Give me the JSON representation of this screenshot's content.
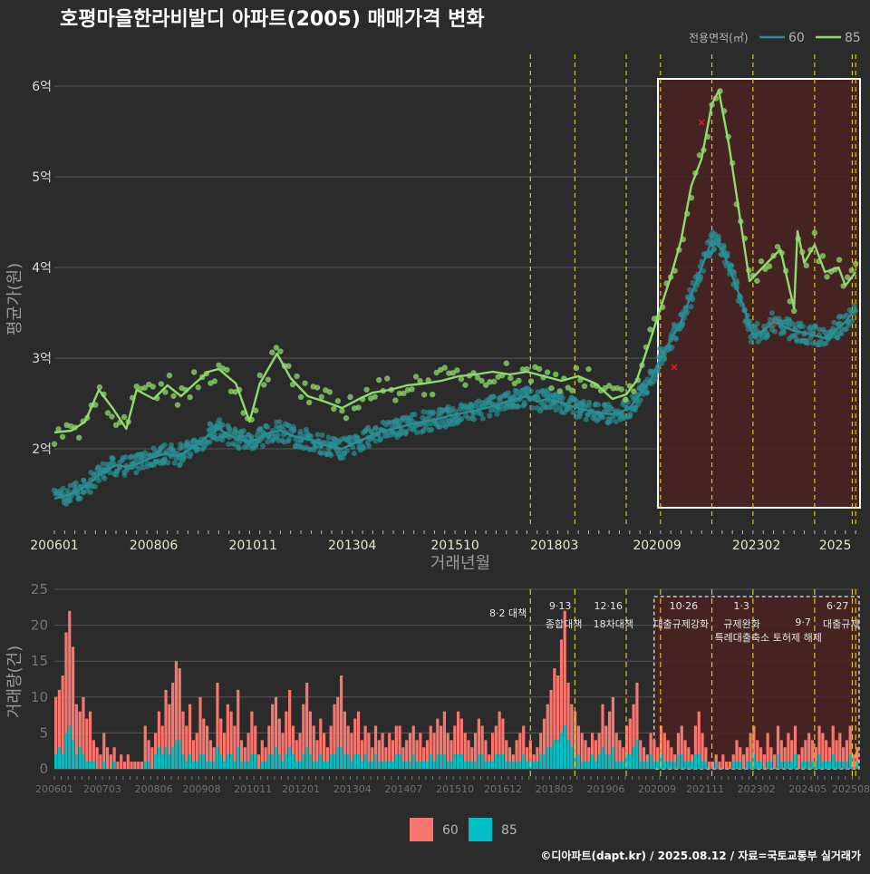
{
  "title": "호평마을한라비발디 아파트(2005) 매매가격 변화",
  "caption": "©디아파트(dapt.kr) / 2025.08.12 / 자료=국토교통부 실거래가",
  "colors": {
    "background": "#2b2b2b",
    "series_60_line": "#2a8f94",
    "series_85_line": "#8fdc6e",
    "bar_60": "#f8766d",
    "bar_85": "#00bfc4",
    "policy_line": "#d6c62a",
    "highlight_fill": "#4a2222",
    "outlier_mark": "#cc2222"
  },
  "chart_data": [
    {
      "type": "line",
      "title": "호평마을한라비발디 아파트(2005) 매매가격 변화",
      "xlabel": "거래년월",
      "ylabel": "평균가(원)",
      "x_range": [
        "2006-01",
        "2025-08"
      ],
      "ylim": [
        1.15,
        6.35
      ],
      "y_unit": "억",
      "y_ticks": [
        2,
        3,
        4,
        5,
        6
      ],
      "y_tick_labels": [
        "2억",
        "3억",
        "4억",
        "5억",
        "6억"
      ],
      "x_tick_labels": [
        "200601",
        "200806",
        "201011",
        "201304",
        "201510",
        "201803",
        "202009",
        "202302",
        "2025"
      ],
      "grid": true,
      "legend": {
        "title": "전용면적(㎡)",
        "position": "top-right",
        "entries": [
          "60",
          "85"
        ]
      },
      "policy_dates": [
        "2017-08",
        "2018-09",
        "2019-12",
        "2020-10",
        "2022-01",
        "2023-01",
        "2024-07",
        "2025-06",
        "2025-07"
      ],
      "highlight_range": [
        "2020-09",
        "2025-08"
      ],
      "highlight_ylim": [
        1.35,
        6.08
      ],
      "series": [
        {
          "name": "60",
          "points": [
            [
              "2006-01",
              1.45
            ],
            [
              "2006-04",
              1.48
            ],
            [
              "2006-07",
              1.52
            ],
            [
              "2006-10",
              1.58
            ],
            [
              "2007-01",
              1.68
            ],
            [
              "2007-04",
              1.76
            ],
            [
              "2007-07",
              1.82
            ],
            [
              "2007-10",
              1.8
            ],
            [
              "2008-01",
              1.83
            ],
            [
              "2008-04",
              1.88
            ],
            [
              "2008-07",
              1.92
            ],
            [
              "2008-10",
              1.95
            ],
            [
              "2009-01",
              1.92
            ],
            [
              "2009-04",
              1.98
            ],
            [
              "2009-07",
              2.05
            ],
            [
              "2009-10",
              2.15
            ],
            [
              "2010-01",
              2.22
            ],
            [
              "2010-04",
              2.15
            ],
            [
              "2010-07",
              2.1
            ],
            [
              "2010-10",
              2.08
            ],
            [
              "2011-01",
              2.12
            ],
            [
              "2011-04",
              2.18
            ],
            [
              "2011-07",
              2.2
            ],
            [
              "2011-10",
              2.15
            ],
            [
              "2012-01",
              2.12
            ],
            [
              "2012-04",
              2.1
            ],
            [
              "2012-07",
              2.05
            ],
            [
              "2012-10",
              2.02
            ],
            [
              "2013-01",
              2.0
            ],
            [
              "2013-04",
              2.05
            ],
            [
              "2013-07",
              2.1
            ],
            [
              "2013-10",
              2.15
            ],
            [
              "2014-01",
              2.2
            ],
            [
              "2014-04",
              2.22
            ],
            [
              "2014-07",
              2.25
            ],
            [
              "2014-10",
              2.28
            ],
            [
              "2015-01",
              2.3
            ],
            [
              "2015-04",
              2.32
            ],
            [
              "2015-07",
              2.35
            ],
            [
              "2015-10",
              2.38
            ],
            [
              "2016-01",
              2.4
            ],
            [
              "2016-04",
              2.42
            ],
            [
              "2016-07",
              2.45
            ],
            [
              "2016-10",
              2.48
            ],
            [
              "2017-01",
              2.52
            ],
            [
              "2017-04",
              2.55
            ],
            [
              "2017-07",
              2.58
            ],
            [
              "2017-10",
              2.52
            ],
            [
              "2018-01",
              2.55
            ],
            [
              "2018-04",
              2.52
            ],
            [
              "2018-07",
              2.48
            ],
            [
              "2018-10",
              2.45
            ],
            [
              "2019-01",
              2.42
            ],
            [
              "2019-04",
              2.4
            ],
            [
              "2019-07",
              2.38
            ],
            [
              "2019-10",
              2.4
            ],
            [
              "2020-01",
              2.45
            ],
            [
              "2020-04",
              2.6
            ],
            [
              "2020-07",
              2.75
            ],
            [
              "2020-10",
              3.0
            ],
            [
              "2021-01",
              3.2
            ],
            [
              "2021-04",
              3.4
            ],
            [
              "2021-07",
              3.7
            ],
            [
              "2021-10",
              4.0
            ],
            [
              "2022-01",
              4.3
            ],
            [
              "2022-04",
              4.2
            ],
            [
              "2022-07",
              3.9
            ],
            [
              "2022-10",
              3.6
            ],
            [
              "2023-01",
              3.25
            ],
            [
              "2023-04",
              3.3
            ],
            [
              "2023-07",
              3.4
            ],
            [
              "2023-10",
              3.35
            ],
            [
              "2024-01",
              3.3
            ],
            [
              "2024-04",
              3.28
            ],
            [
              "2024-07",
              3.25
            ],
            [
              "2024-10",
              3.22
            ],
            [
              "2025-01",
              3.3
            ],
            [
              "2025-04",
              3.4
            ],
            [
              "2025-07",
              3.55
            ]
          ]
        },
        {
          "name": "85",
          "points": [
            [
              "2006-01",
              2.18
            ],
            [
              "2006-06",
              2.2
            ],
            [
              "2006-10",
              2.3
            ],
            [
              "2007-02",
              2.65
            ],
            [
              "2007-06",
              2.45
            ],
            [
              "2007-10",
              2.22
            ],
            [
              "2008-01",
              2.65
            ],
            [
              "2008-06",
              2.55
            ],
            [
              "2008-10",
              2.7
            ],
            [
              "2009-02",
              2.58
            ],
            [
              "2009-06",
              2.72
            ],
            [
              "2009-10",
              2.85
            ],
            [
              "2010-01",
              2.88
            ],
            [
              "2010-06",
              2.72
            ],
            [
              "2010-10",
              2.3
            ],
            [
              "2011-01",
              2.72
            ],
            [
              "2011-06",
              3.05
            ],
            [
              "2011-10",
              2.78
            ],
            [
              "2012-03",
              2.58
            ],
            [
              "2012-08",
              2.52
            ],
            [
              "2013-01",
              2.45
            ],
            [
              "2013-06",
              2.55
            ],
            [
              "2013-10",
              2.62
            ],
            [
              "2014-03",
              2.65
            ],
            [
              "2014-08",
              2.7
            ],
            [
              "2015-01",
              2.72
            ],
            [
              "2015-06",
              2.75
            ],
            [
              "2015-11",
              2.8
            ],
            [
              "2016-04",
              2.82
            ],
            [
              "2016-09",
              2.85
            ],
            [
              "2017-02",
              2.82
            ],
            [
              "2017-07",
              2.85
            ],
            [
              "2017-12",
              2.8
            ],
            [
              "2018-05",
              2.75
            ],
            [
              "2018-10",
              2.8
            ],
            [
              "2019-03",
              2.72
            ],
            [
              "2019-08",
              2.55
            ],
            [
              "2019-12",
              2.6
            ],
            [
              "2020-03",
              2.75
            ],
            [
              "2020-07",
              3.2
            ],
            [
              "2020-10",
              3.55
            ],
            [
              "2021-01",
              3.9
            ],
            [
              "2021-04",
              4.3
            ],
            [
              "2021-07",
              4.9
            ],
            [
              "2021-10",
              5.2
            ],
            [
              "2022-01",
              5.8
            ],
            [
              "2022-03",
              5.95
            ],
            [
              "2022-06",
              5.35
            ],
            [
              "2022-12",
              3.85
            ],
            [
              "2023-09",
              4.2
            ],
            [
              "2024-01",
              3.55
            ],
            [
              "2024-02",
              4.4
            ],
            [
              "2024-04",
              4.05
            ],
            [
              "2024-07",
              4.25
            ],
            [
              "2024-10",
              3.95
            ],
            [
              "2025-02",
              4.0
            ],
            [
              "2025-04",
              3.8
            ],
            [
              "2025-07",
              3.95
            ]
          ]
        }
      ]
    },
    {
      "type": "bar",
      "ylabel": "거래량(건)",
      "ylim": [
        0,
        25
      ],
      "y_ticks": [
        0,
        5,
        10,
        15,
        20,
        25
      ],
      "x_tick_labels": [
        "200601",
        "200703",
        "200806",
        "200908",
        "201011",
        "201201",
        "201304",
        "201407",
        "201510",
        "201612",
        "201803",
        "201906",
        "202009",
        "202111",
        "202302",
        "202405",
        "202508"
      ],
      "legend": {
        "position": "bottom",
        "entries": [
          "60",
          "85"
        ]
      },
      "policy_annotations": [
        {
          "date": "2017-08",
          "label": "8·2 대책"
        },
        {
          "date": "2018-09",
          "label": "9·13",
          "label2": "종합대책"
        },
        {
          "date": "2019-12",
          "label": "12·16",
          "label2": "18차대책"
        },
        {
          "date": "2021-10",
          "label": "10·26",
          "label2": "대출규제강화"
        },
        {
          "date": "2023-01",
          "label": "1·3",
          "label2": "규제완화"
        },
        {
          "date": "2024-07",
          "label": "9·7",
          "label2": "특례대출축소 토허제 해제"
        },
        {
          "date": "2025-06",
          "label": "6·27",
          "label2": "대출규제"
        }
      ],
      "highlight_range": [
        "2020-06",
        "2025-08"
      ],
      "monthly_totals_60": [
        10,
        11,
        13,
        19,
        22,
        17,
        9,
        8,
        10,
        7,
        8,
        4,
        3,
        2,
        5,
        3,
        2,
        3,
        1,
        2,
        1,
        2,
        1,
        1,
        1,
        1,
        6,
        4,
        3,
        5,
        8,
        6,
        11,
        9,
        12,
        15,
        14,
        8,
        6,
        9,
        4,
        5,
        10,
        7,
        6,
        4,
        3,
        12,
        7,
        5,
        9,
        8,
        6,
        11,
        4,
        3,
        5,
        8,
        6,
        2,
        4,
        3,
        6,
        9,
        10,
        7,
        5,
        8,
        11,
        6,
        4,
        5,
        9,
        12,
        8,
        6,
        4,
        7,
        5,
        3,
        6,
        9,
        10,
        13,
        8,
        6,
        5,
        7,
        8,
        4,
        6,
        5,
        3,
        6,
        4,
        5,
        3,
        5,
        4,
        6,
        6,
        3,
        4,
        5,
        6,
        4,
        5,
        3,
        4,
        6,
        5,
        7,
        6,
        8,
        5,
        4,
        6,
        8,
        7,
        5,
        4,
        3,
        5,
        7,
        6,
        4,
        2,
        5,
        6,
        8,
        7,
        4,
        3,
        2,
        4,
        5,
        6,
        3,
        4,
        2,
        3,
        5,
        7,
        9,
        11,
        14,
        13,
        18,
        22,
        12,
        9,
        8,
        6,
        5,
        4,
        3,
        5,
        4,
        5,
        9,
        6,
        8,
        10,
        5,
        4,
        3,
        6,
        7,
        9,
        12,
        4,
        3,
        2,
        5,
        4,
        3,
        6,
        5,
        4,
        3,
        2,
        5,
        6,
        4,
        3,
        2,
        6,
        8,
        5,
        3,
        1,
        1,
        2,
        1,
        2,
        1,
        1,
        2,
        4,
        3,
        2,
        3,
        5,
        6,
        4,
        3,
        2,
        5,
        3,
        2,
        6,
        4,
        3,
        5,
        4,
        6,
        2,
        3,
        4,
        5,
        4,
        3,
        6,
        5,
        4,
        3,
        6,
        4,
        5,
        3,
        4,
        6,
        2,
        3
      ],
      "monthly_totals_85": [
        2,
        3,
        2,
        5,
        6,
        4,
        2,
        3,
        2,
        1,
        1,
        1,
        0,
        0,
        1,
        0,
        0,
        1,
        0,
        0,
        0,
        0,
        0,
        0,
        0,
        0,
        1,
        1,
        0,
        2,
        3,
        2,
        3,
        2,
        3,
        4,
        4,
        2,
        1,
        2,
        1,
        1,
        2,
        2,
        1,
        1,
        1,
        3,
        2,
        1,
        2,
        2,
        1,
        3,
        1,
        1,
        1,
        2,
        2,
        0,
        1,
        1,
        2,
        2,
        3,
        2,
        1,
        2,
        3,
        2,
        1,
        1,
        2,
        3,
        2,
        1,
        1,
        2,
        1,
        1,
        2,
        2,
        3,
        3,
        2,
        2,
        1,
        2,
        2,
        1,
        2,
        1,
        1,
        2,
        1,
        1,
        1,
        1,
        1,
        2,
        2,
        1,
        1,
        1,
        2,
        1,
        1,
        1,
        1,
        2,
        1,
        2,
        2,
        2,
        1,
        1,
        2,
        2,
        2,
        1,
        1,
        1,
        1,
        2,
        2,
        1,
        1,
        1,
        2,
        2,
        2,
        1,
        1,
        1,
        1,
        1,
        2,
        1,
        1,
        1,
        1,
        2,
        2,
        3,
        3,
        4,
        4,
        5,
        6,
        4,
        3,
        2,
        2,
        1,
        1,
        1,
        2,
        1,
        2,
        3,
        2,
        2,
        3,
        1,
        1,
        1,
        2,
        2,
        3,
        4,
        1,
        1,
        1,
        2,
        1,
        1,
        2,
        1,
        1,
        1,
        1,
        2,
        2,
        1,
        1,
        1,
        2,
        2,
        1,
        1,
        0,
        0,
        1,
        0,
        0,
        0,
        0,
        1,
        1,
        1,
        0,
        1,
        1,
        2,
        1,
        1,
        0,
        1,
        1,
        0,
        2,
        1,
        1,
        1,
        1,
        2,
        0,
        1,
        1,
        1,
        1,
        1,
        2,
        1,
        1,
        1,
        2,
        1,
        1,
        1,
        1,
        2,
        0,
        1
      ]
    }
  ]
}
